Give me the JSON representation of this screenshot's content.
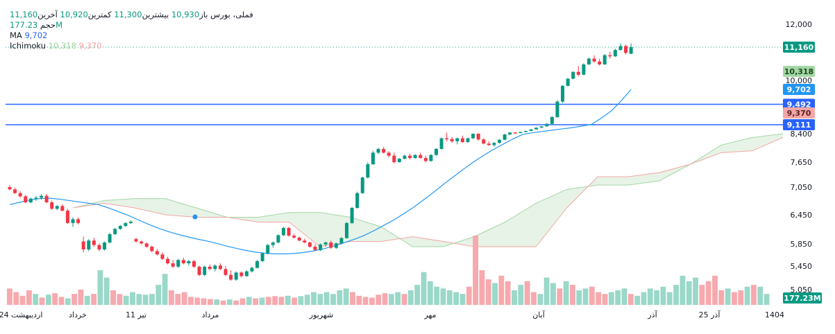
{
  "legend": {
    "symbol": "فملی، بورس",
    "open_label": "باز",
    "open_value": "10,930",
    "high_label": "بیشترین",
    "high_value": "11,300",
    "low_label": "کمترین",
    "low_value": "10,920",
    "close_label": "آخرین",
    "close_value": "11,160",
    "volume_label": "حجم",
    "volume_value": "177.23M",
    "ma_label": "MA",
    "ma_value": "9,702",
    "ichimoku_label": "Ichimoku",
    "ichimoku_lead_a": "10,318",
    "ichimoku_lead_b": "9,370"
  },
  "colors": {
    "up": "#089981",
    "down": "#f23645",
    "ma": "#2196f3",
    "cloud_up": "#e3f2e3",
    "cloud_down": "#fde0e0",
    "span_a": "#a5d6a7",
    "span_b": "#f4a6a6",
    "hline": "#2962ff",
    "vol_up": "#9ad8c9",
    "vol_down": "#f6a9ae"
  },
  "chart_data": {
    "type": "candlestick",
    "price_axis_ticks": [
      "12,000",
      "10,000",
      "8,400",
      "7,650",
      "7,050",
      "6,450",
      "5,850",
      "5,450",
      "5,050"
    ],
    "time_axis_labels": [
      "24 اردیبهشت",
      "خرداد",
      "11 تیر",
      "مرداد",
      "شهریور",
      "مهر",
      "آبان",
      "آذر",
      "25 آذر",
      "1404"
    ],
    "price_tags": [
      {
        "value": "11,160",
        "kind": "close"
      },
      {
        "value": "10,318",
        "kind": "lead_a"
      },
      {
        "value": "9,702",
        "kind": "ma"
      },
      {
        "value": "9,492",
        "kind": "hline"
      },
      {
        "value": "9,370",
        "kind": "lead_b"
      },
      {
        "value": "9,111",
        "kind": "hline"
      }
    ],
    "volume_tag": "177.23M",
    "horizontal_lines": [
      9492,
      9111
    ],
    "candles": [
      [
        7050,
        7100,
        6980,
        7000
      ],
      [
        7000,
        7040,
        6900,
        6920
      ],
      [
        6920,
        6960,
        6820,
        6850
      ],
      [
        6850,
        6880,
        6700,
        6720
      ],
      [
        6720,
        6820,
        6700,
        6800
      ],
      [
        6800,
        6860,
        6750,
        6820
      ],
      [
        6820,
        6900,
        6780,
        6860
      ],
      [
        6860,
        6900,
        6700,
        6720
      ],
      [
        6720,
        6760,
        6560,
        6580
      ],
      [
        6580,
        6660,
        6550,
        6640
      ],
      [
        6640,
        6680,
        6520,
        6540
      ],
      [
        6540,
        6580,
        6260,
        6280
      ],
      [
        6280,
        6400,
        6200,
        6360
      ],
      [
        6360,
        6400,
        6250,
        6280
      ],
      [
        5900,
        6000,
        5700,
        5750
      ],
      [
        5750,
        5950,
        5720,
        5920
      ],
      [
        5920,
        5980,
        5800,
        5830
      ],
      [
        5830,
        5860,
        5720,
        5750
      ],
      [
        5750,
        5900,
        5730,
        5880
      ],
      [
        5880,
        6080,
        5860,
        6050
      ],
      [
        6050,
        6180,
        6040,
        6160
      ],
      [
        6160,
        6240,
        6140,
        6220
      ],
      [
        6220,
        6300,
        6200,
        6280
      ],
      [
        6280,
        6330,
        6260,
        6310
      ],
      [
        5950,
        5980,
        5880,
        5900
      ],
      [
        5900,
        5920,
        5840,
        5860
      ],
      [
        5860,
        5880,
        5780,
        5800
      ],
      [
        5800,
        5820,
        5700,
        5720
      ],
      [
        5720,
        5760,
        5640,
        5660
      ],
      [
        5660,
        5700,
        5560,
        5580
      ],
      [
        5580,
        5620,
        5480,
        5500
      ],
      [
        5500,
        5560,
        5420,
        5440
      ],
      [
        5440,
        5580,
        5420,
        5560
      ],
      [
        5560,
        5600,
        5480,
        5500
      ],
      [
        5500,
        5560,
        5460,
        5540
      ],
      [
        5540,
        5560,
        5420,
        5440
      ],
      [
        5440,
        5460,
        5280,
        5300
      ],
      [
        5300,
        5460,
        5280,
        5440
      ],
      [
        5440,
        5480,
        5380,
        5400
      ],
      [
        5400,
        5480,
        5360,
        5460
      ],
      [
        5460,
        5500,
        5380,
        5400
      ],
      [
        5400,
        5450,
        5280,
        5300
      ],
      [
        5300,
        5380,
        5200,
        5220
      ],
      [
        5220,
        5360,
        5200,
        5340
      ],
      [
        5340,
        5360,
        5260,
        5280
      ],
      [
        5280,
        5380,
        5270,
        5360
      ],
      [
        5360,
        5440,
        5340,
        5420
      ],
      [
        5420,
        5560,
        5410,
        5540
      ],
      [
        5540,
        5700,
        5520,
        5680
      ],
      [
        5680,
        5850,
        5660,
        5830
      ],
      [
        5830,
        5900,
        5780,
        5880
      ],
      [
        5880,
        6050,
        5860,
        6030
      ],
      [
        6030,
        6200,
        6010,
        6180
      ],
      [
        6180,
        6200,
        6000,
        6020
      ],
      [
        6020,
        6060,
        5960,
        5980
      ],
      [
        5980,
        6000,
        5900,
        5920
      ],
      [
        5920,
        5960,
        5860,
        5880
      ],
      [
        5880,
        5900,
        5780,
        5800
      ],
      [
        5800,
        5840,
        5720,
        5740
      ],
      [
        5740,
        5860,
        5720,
        5840
      ],
      [
        5840,
        5900,
        5800,
        5880
      ],
      [
        5880,
        5920,
        5760,
        5780
      ],
      [
        5780,
        5880,
        5760,
        5860
      ],
      [
        5860,
        5990,
        5840,
        5970
      ],
      [
        5970,
        6300,
        5960,
        6280
      ],
      [
        6280,
        6620,
        6260,
        6600
      ],
      [
        6600,
        6950,
        6580,
        6920
      ],
      [
        6920,
        7300,
        6900,
        7280
      ],
      [
        7280,
        7650,
        7260,
        7600
      ],
      [
        7600,
        7950,
        7580,
        7900
      ],
      [
        7900,
        8020,
        7860,
        8000
      ],
      [
        8000,
        8050,
        7880,
        7900
      ],
      [
        7900,
        7940,
        7780,
        7820
      ],
      [
        7820,
        7900,
        7620,
        7650
      ],
      [
        7650,
        7760,
        7640,
        7740
      ],
      [
        7740,
        7850,
        7720,
        7820
      ],
      [
        7820,
        7880,
        7720,
        7760
      ],
      [
        7760,
        7860,
        7740,
        7840
      ],
      [
        7840,
        7900,
        7740,
        7760
      ],
      [
        7760,
        7820,
        7640,
        7680
      ],
      [
        7680,
        7860,
        7660,
        7840
      ],
      [
        7840,
        8020,
        7820,
        8000
      ],
      [
        8000,
        8300,
        7980,
        8280
      ],
      [
        8280,
        8480,
        8200,
        8260
      ],
      [
        8260,
        8320,
        8160,
        8200
      ],
      [
        8200,
        8300,
        8120,
        8280
      ],
      [
        8280,
        8350,
        8160,
        8180
      ],
      [
        8180,
        8300,
        8160,
        8280
      ],
      [
        8280,
        8420,
        8260,
        8400
      ],
      [
        8400,
        8440,
        8220,
        8250
      ],
      [
        8250,
        8280,
        8120,
        8140
      ],
      [
        8140,
        8200,
        8080,
        8100
      ],
      [
        8100,
        8180,
        8060,
        8160
      ],
      [
        8160,
        8260,
        8140,
        8240
      ],
      [
        8240,
        8400,
        8230,
        8380
      ],
      [
        8380,
        8520,
        8360,
        8500
      ],
      [
        8500,
        8540,
        8440,
        8460
      ],
      [
        8460,
        8560,
        8440,
        8540
      ],
      [
        8540,
        8640,
        8520,
        8620
      ],
      [
        8620,
        8760,
        8600,
        8740
      ],
      [
        8740,
        8900,
        8720,
        8880
      ],
      [
        8880,
        9000,
        8860,
        8980
      ],
      [
        8980,
        9150,
        8960,
        9130
      ],
      [
        9130,
        9300,
        9110,
        9280
      ],
      [
        9280,
        9550,
        9260,
        9530
      ],
      [
        9530,
        9840,
        9510,
        9820
      ],
      [
        9820,
        10080,
        9800,
        10060
      ],
      [
        10060,
        10320,
        10040,
        10300
      ],
      [
        10300,
        10500,
        10150,
        10200
      ],
      [
        10200,
        10600,
        10180,
        10560
      ],
      [
        10560,
        10800,
        10540,
        10760
      ],
      [
        10760,
        10880,
        10620,
        10660
      ],
      [
        10660,
        10760,
        10520,
        10560
      ],
      [
        10560,
        10920,
        10540,
        10880
      ],
      [
        10880,
        11000,
        10760,
        10840
      ],
      [
        10840,
        11100,
        10820,
        11060
      ],
      [
        11060,
        11300,
        11040,
        11200
      ],
      [
        11200,
        11250,
        10900,
        10960
      ],
      [
        10930,
        11300,
        10920,
        11160
      ]
    ],
    "ma": [
      6670,
      6720,
      6770,
      6800,
      6810,
      6790,
      6760,
      6730,
      6700,
      6670,
      6600,
      6520,
      6440,
      6350,
      6260,
      6180,
      6110,
      6050,
      6000,
      5950,
      5910,
      5860,
      5810,
      5770,
      5730,
      5700,
      5680,
      5670,
      5670,
      5680,
      5700,
      5730,
      5770,
      5820,
      5880,
      5950,
      6030,
      6130,
      6240,
      6350,
      6480,
      6620,
      6780,
      6940,
      7120,
      7300,
      7480,
      7650,
      7820,
      7980,
      8120,
      8260,
      8380,
      8480,
      8580,
      8680,
      8780,
      8880,
      9000,
      9120,
      9260,
      9400,
      9540,
      9702
    ],
    "cloud": [
      [
        6600,
        6600
      ],
      [
        6760,
        6700
      ],
      [
        6800,
        6600
      ],
      [
        6800,
        6450
      ],
      [
        6600,
        6400
      ],
      [
        6400,
        6400
      ],
      [
        6400,
        6300
      ],
      [
        6500,
        6300
      ],
      [
        6500,
        5800
      ],
      [
        6400,
        5900
      ],
      [
        6200,
        5900
      ],
      [
        5800,
        6000
      ],
      [
        5800,
        5900
      ],
      [
        6000,
        5800
      ],
      [
        6300,
        5800
      ],
      [
        6700,
        5800
      ],
      [
        7000,
        6600
      ],
      [
        7100,
        7300
      ],
      [
        7100,
        7300
      ],
      [
        7200,
        7400
      ],
      [
        7600,
        7600
      ],
      [
        8100,
        7900
      ],
      [
        8300,
        7950
      ],
      [
        8400,
        8300
      ]
    ],
    "volume": [
      [
        0.45,
        "d"
      ],
      [
        0.35,
        "d"
      ],
      [
        0.25,
        "d"
      ],
      [
        0.4,
        "d"
      ],
      [
        0.3,
        "u"
      ],
      [
        0.2,
        "d"
      ],
      [
        0.28,
        "u"
      ],
      [
        0.32,
        "d"
      ],
      [
        0.22,
        "d"
      ],
      [
        0.18,
        "u"
      ],
      [
        0.3,
        "d"
      ],
      [
        0.42,
        "d"
      ],
      [
        0.25,
        "u"
      ],
      [
        0.3,
        "d"
      ],
      [
        0.95,
        "u"
      ],
      [
        0.75,
        "u"
      ],
      [
        0.4,
        "d"
      ],
      [
        0.3,
        "d"
      ],
      [
        0.25,
        "u"
      ],
      [
        0.35,
        "u"
      ],
      [
        0.3,
        "u"
      ],
      [
        0.28,
        "u"
      ],
      [
        0.3,
        "u"
      ],
      [
        0.55,
        "u"
      ],
      [
        0.85,
        "u"
      ],
      [
        0.4,
        "d"
      ],
      [
        0.3,
        "d"
      ],
      [
        0.35,
        "d"
      ],
      [
        0.22,
        "d"
      ],
      [
        0.2,
        "d"
      ],
      [
        0.18,
        "d"
      ],
      [
        0.16,
        "d"
      ],
      [
        0.15,
        "u"
      ],
      [
        0.12,
        "d"
      ],
      [
        0.15,
        "u"
      ],
      [
        0.12,
        "d"
      ],
      [
        0.18,
        "d"
      ],
      [
        0.22,
        "u"
      ],
      [
        0.18,
        "d"
      ],
      [
        0.2,
        "u"
      ],
      [
        0.22,
        "d"
      ],
      [
        0.24,
        "d"
      ],
      [
        0.22,
        "d"
      ],
      [
        0.25,
        "u"
      ],
      [
        0.2,
        "d"
      ],
      [
        0.24,
        "u"
      ],
      [
        0.28,
        "u"
      ],
      [
        0.35,
        "u"
      ],
      [
        0.3,
        "u"
      ],
      [
        0.35,
        "u"
      ],
      [
        0.3,
        "u"
      ],
      [
        0.4,
        "u"
      ],
      [
        0.45,
        "u"
      ],
      [
        0.35,
        "d"
      ],
      [
        0.25,
        "d"
      ],
      [
        0.22,
        "d"
      ],
      [
        0.2,
        "d"
      ],
      [
        0.28,
        "d"
      ],
      [
        0.32,
        "d"
      ],
      [
        0.3,
        "u"
      ],
      [
        0.35,
        "u"
      ],
      [
        0.3,
        "d"
      ],
      [
        0.4,
        "u"
      ],
      [
        0.55,
        "u"
      ],
      [
        0.9,
        "u"
      ],
      [
        0.65,
        "u"
      ],
      [
        0.5,
        "u"
      ],
      [
        0.45,
        "u"
      ],
      [
        0.4,
        "u"
      ],
      [
        0.35,
        "u"
      ],
      [
        0.3,
        "u"
      ],
      [
        0.5,
        "d"
      ],
      [
        1.9,
        "d"
      ],
      [
        0.95,
        "d"
      ],
      [
        0.7,
        "d"
      ],
      [
        0.6,
        "u"
      ],
      [
        0.8,
        "d"
      ],
      [
        0.65,
        "d"
      ],
      [
        0.4,
        "u"
      ],
      [
        0.55,
        "u"
      ],
      [
        0.65,
        "d"
      ],
      [
        0.35,
        "d"
      ],
      [
        0.3,
        "u"
      ],
      [
        0.75,
        "u"
      ],
      [
        0.6,
        "u"
      ],
      [
        0.45,
        "d"
      ],
      [
        0.65,
        "u"
      ],
      [
        0.55,
        "d"
      ],
      [
        0.4,
        "u"
      ],
      [
        0.45,
        "u"
      ],
      [
        0.5,
        "d"
      ],
      [
        0.35,
        "d"
      ],
      [
        0.3,
        "d"
      ],
      [
        0.35,
        "u"
      ],
      [
        0.4,
        "u"
      ],
      [
        0.45,
        "u"
      ],
      [
        0.3,
        "d"
      ],
      [
        0.25,
        "u"
      ],
      [
        0.35,
        "u"
      ],
      [
        0.45,
        "u"
      ],
      [
        0.4,
        "u"
      ],
      [
        0.5,
        "u"
      ],
      [
        0.35,
        "u"
      ],
      [
        0.55,
        "u"
      ],
      [
        0.8,
        "u"
      ],
      [
        0.65,
        "u"
      ],
      [
        0.75,
        "u"
      ],
      [
        0.55,
        "d"
      ],
      [
        0.65,
        "d"
      ],
      [
        0.8,
        "d"
      ],
      [
        0.4,
        "d"
      ],
      [
        0.45,
        "u"
      ],
      [
        0.35,
        "d"
      ],
      [
        0.4,
        "d"
      ],
      [
        0.5,
        "u"
      ],
      [
        0.55,
        "d"
      ],
      [
        0.5,
        "u"
      ],
      [
        0.3,
        "u"
      ]
    ]
  }
}
